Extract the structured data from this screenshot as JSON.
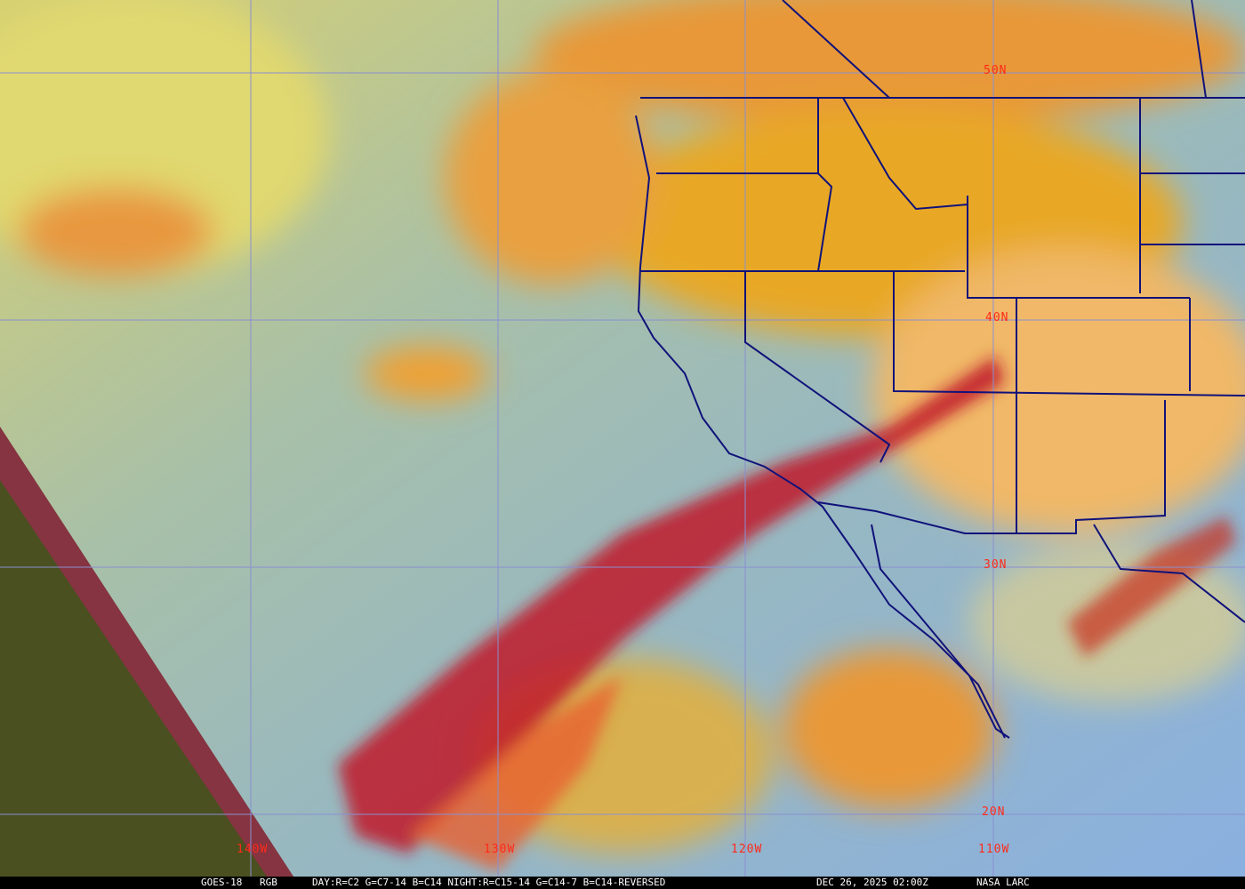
{
  "image": {
    "satellite": "GOES-18",
    "product": "RGB",
    "recipe": "DAY:R=C2 G=C7-14 B=C14 NIGHT:R=C15-14 G=C14-7 B=C14-REVERSED",
    "datetime": "DEC 26, 2025 02:00Z",
    "credit": "NASA LARC"
  },
  "gridlabels": {
    "lat": [
      "50N",
      "40N",
      "30N",
      "20N"
    ],
    "lon": [
      "140W",
      "130W",
      "120W",
      "110W"
    ]
  },
  "colors": {
    "label": "#ff2a1a",
    "grid": "#8a8fd0",
    "borders": "#10127a",
    "ocean_clear": "#8fb8c8",
    "high_cloud": "#c01828",
    "land": "#e8b040"
  }
}
